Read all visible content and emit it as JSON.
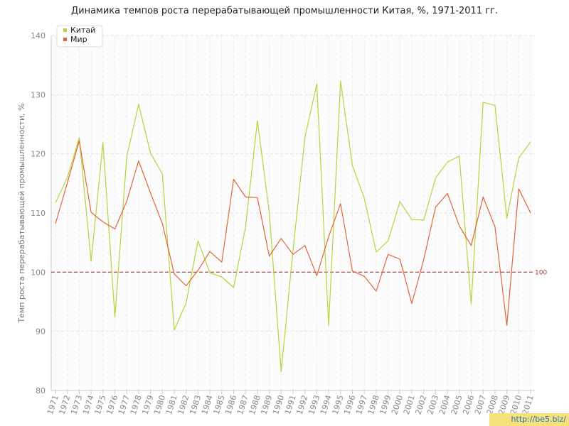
{
  "chart_data": {
    "type": "line",
    "title": "Динамика темпов роста перерабатывающей промышленности Китая, %, 1971-2011 гг.",
    "ylabel": "Темп роста перерабатывающей промышленности, %",
    "xlabel": "",
    "ylim": [
      80,
      140
    ],
    "yticks": [
      80,
      90,
      100,
      110,
      120,
      130,
      140
    ],
    "grid": true,
    "legend_position": "top-left",
    "x": [
      "1971",
      "1972",
      "1973",
      "1974",
      "1975",
      "1976",
      "1977",
      "1978",
      "1979",
      "1980",
      "1981",
      "1982",
      "1983",
      "1984",
      "1985",
      "1986",
      "1987",
      "1988",
      "1989",
      "1990",
      "1991",
      "1992",
      "1993",
      "1994",
      "1995",
      "1996",
      "1997",
      "1998",
      "1999",
      "2000",
      "2001",
      "2002",
      "2003",
      "2004",
      "2005",
      "2006",
      "2007",
      "2008",
      "2009",
      "2010",
      "2011"
    ],
    "series": [
      {
        "name": "Китай",
        "color": "#b5d43c",
        "values": [
          111.7,
          116.0,
          122.7,
          101.8,
          121.9,
          92.4,
          119.5,
          128.4,
          120.1,
          116.6,
          90.2,
          94.8,
          105.3,
          99.9,
          99.2,
          97.4,
          107.6,
          125.6,
          110.1,
          83.2,
          103.7,
          122.8,
          131.8,
          91.0,
          132.3,
          118.0,
          112.5,
          103.4,
          105.3,
          111.9,
          108.9,
          108.8,
          115.9,
          118.6,
          119.6,
          94.6,
          128.7,
          128.2,
          109.1,
          119.3,
          122.0
        ]
      },
      {
        "name": "Мир",
        "color": "#e0653a",
        "values": [
          108.2,
          115.1,
          122.2,
          110.1,
          108.5,
          107.3,
          112.0,
          118.8,
          113.4,
          108.2,
          99.7,
          97.7,
          100.3,
          103.5,
          101.7,
          115.7,
          112.7,
          112.6,
          102.7,
          105.7,
          103.0,
          104.5,
          99.4,
          106.0,
          111.6,
          100.2,
          99.3,
          96.8,
          103.0,
          102.2,
          94.7,
          102.1,
          111.0,
          113.3,
          107.8,
          104.5,
          112.7,
          107.7,
          91.0,
          114.1,
          110.0
        ]
      }
    ],
    "reference_line": {
      "value": 100,
      "label": "100",
      "color": "#b03a3a"
    }
  },
  "watermark": "http://be5.biz/"
}
